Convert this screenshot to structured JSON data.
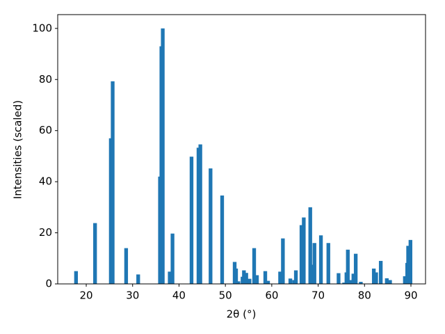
{
  "chart_data": {
    "type": "bar",
    "xlabel": "2θ (°)",
    "ylabel": "Intensities (scaled)",
    "x": [
      17.8,
      21.9,
      25.3,
      25.7,
      28.6,
      31.2,
      35.9,
      36.2,
      36.5,
      38.0,
      38.6,
      42.7,
      44.2,
      44.6,
      46.8,
      49.3,
      52.0,
      52.3,
      52.8,
      53.7,
      54.0,
      54.5,
      55.2,
      56.2,
      56.8,
      58.6,
      59.2,
      61.8,
      62.4,
      64.0,
      64.8,
      65.2,
      66.4,
      66.9,
      68.3,
      68.7,
      69.2,
      70.6,
      72.2,
      74.4,
      75.6,
      76.1,
      76.4,
      77.0,
      77.6,
      78.1,
      79.2,
      82.0,
      82.5,
      83.5,
      84.8,
      85.5,
      88.7,
      89.2,
      89.4,
      89.9
    ],
    "values": [
      5,
      23.8,
      57,
      79.3,
      14,
      3.7,
      42,
      93,
      100,
      4.8,
      19.7,
      49.8,
      53.3,
      54.6,
      45.2,
      34.6,
      8.6,
      6,
      1,
      2.8,
      5.3,
      4.3,
      2,
      14,
      3.4,
      5,
      1.2,
      4.8,
      17.8,
      2.1,
      1.5,
      5.3,
      23,
      26,
      30,
      7.5,
      16,
      19,
      16,
      4.2,
      0.5,
      4.5,
      13.4,
      1.5,
      4,
      11.8,
      0.8,
      6,
      4.5,
      9,
      2.2,
      1.5,
      3,
      8.2,
      14.9,
      17.2
    ],
    "color": "#1f77b4",
    "xlim": [
      13.85,
      93.15
    ],
    "xticks": [
      20,
      30,
      40,
      50,
      60,
      70,
      80,
      90
    ],
    "ylim": [
      0,
      105.4
    ],
    "yticks": [
      0,
      20,
      40,
      60,
      80,
      100
    ],
    "grid": false
  }
}
